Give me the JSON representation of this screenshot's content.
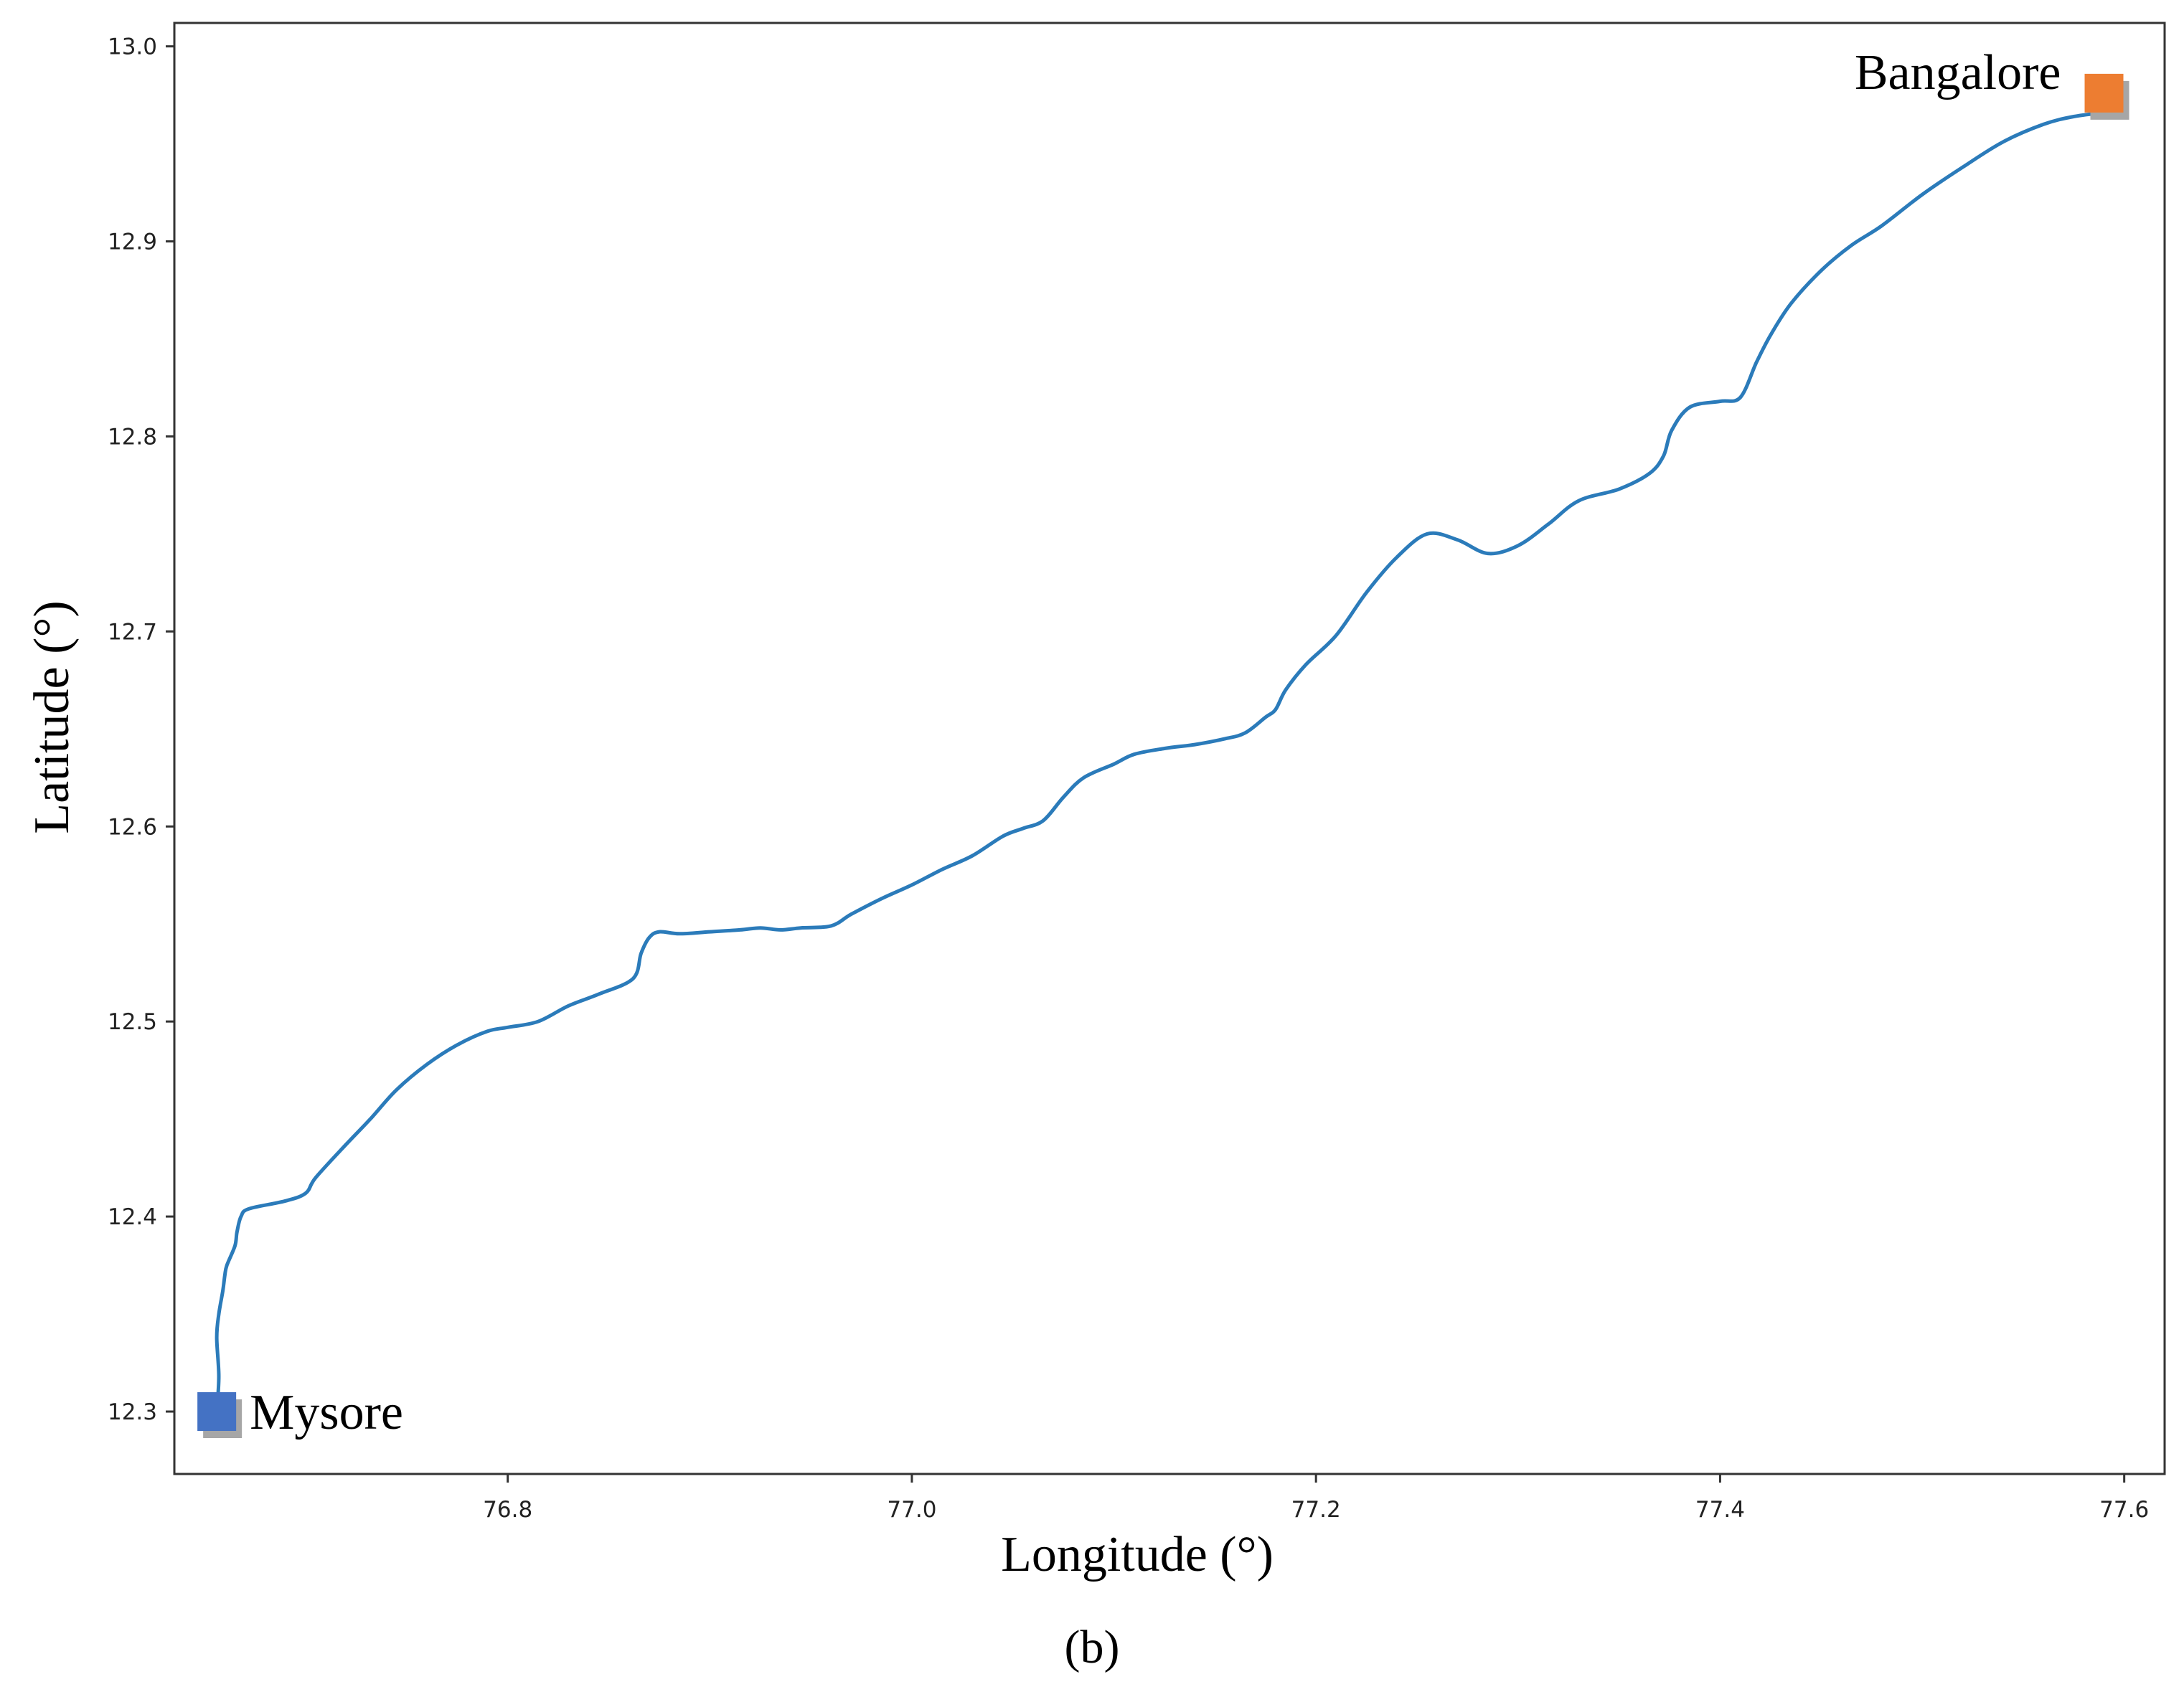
{
  "chart_data": {
    "type": "line",
    "xlabel": "Longitude (°)",
    "ylabel": "Latitude (°)",
    "xlim": [
      76.635,
      77.62
    ],
    "ylim": [
      12.268,
      13.012
    ],
    "xticks": [
      76.8,
      77.0,
      77.2,
      77.4,
      77.6
    ],
    "xtick_labels": [
      "76.8",
      "77.0",
      "77.2",
      "77.4",
      "77.6"
    ],
    "yticks": [
      12.3,
      12.4,
      12.5,
      12.6,
      12.7,
      12.8,
      12.9,
      13.0
    ],
    "ytick_labels": [
      "12.3",
      "12.4",
      "12.5",
      "12.6",
      "12.7",
      "12.8",
      "12.9",
      "13.0"
    ],
    "grid": false,
    "line_color": "#2b7bba",
    "series": [
      {
        "x": [
          76.656,
          76.657,
          76.656,
          76.657,
          76.659,
          76.66,
          76.661,
          76.665,
          76.666,
          76.668,
          76.672,
          76.69,
          76.7,
          76.705,
          76.72,
          76.732,
          76.745,
          76.76,
          76.775,
          76.79,
          76.8,
          76.815,
          76.83,
          76.845,
          76.862,
          76.866,
          76.87,
          76.875,
          76.885,
          76.9,
          76.915,
          76.925,
          76.935,
          76.945,
          76.96,
          76.97,
          76.985,
          77.0,
          77.015,
          77.03,
          77.045,
          77.055,
          77.065,
          77.075,
          77.085,
          77.1,
          77.11,
          77.125,
          77.14,
          77.155,
          77.165,
          77.175,
          77.18,
          77.185,
          77.195,
          77.21,
          77.225,
          77.24,
          77.255,
          77.27,
          77.285,
          77.3,
          77.315,
          77.33,
          77.35,
          77.365,
          77.372,
          77.376,
          77.385,
          77.4,
          77.41,
          77.418,
          77.425,
          77.435,
          77.45,
          77.465,
          77.48,
          77.5,
          77.52,
          77.54,
          77.56,
          77.575,
          77.59
        ],
        "y": [
          12.3,
          12.318,
          12.338,
          12.35,
          12.362,
          12.37,
          12.375,
          12.385,
          12.392,
          12.4,
          12.404,
          12.408,
          12.412,
          12.42,
          12.437,
          12.45,
          12.465,
          12.478,
          12.488,
          12.495,
          12.497,
          12.5,
          12.508,
          12.514,
          12.522,
          12.535,
          12.543,
          12.546,
          12.545,
          12.546,
          12.547,
          12.548,
          12.547,
          12.548,
          12.549,
          12.555,
          12.563,
          12.57,
          12.578,
          12.585,
          12.595,
          12.599,
          12.603,
          12.615,
          12.625,
          12.632,
          12.637,
          12.64,
          12.642,
          12.645,
          12.648,
          12.656,
          12.66,
          12.67,
          12.683,
          12.698,
          12.72,
          12.738,
          12.75,
          12.747,
          12.74,
          12.744,
          12.755,
          12.767,
          12.773,
          12.781,
          12.79,
          12.803,
          12.815,
          12.818,
          12.82,
          12.838,
          12.852,
          12.868,
          12.885,
          12.898,
          12.908,
          12.924,
          12.938,
          12.951,
          12.96,
          12.964,
          12.966
        ]
      }
    ],
    "markers": [
      {
        "label": "Mysore",
        "x": 76.656,
        "y": 12.3,
        "color": "#4472c4",
        "shadow_color": "#a6a6a6"
      },
      {
        "label": "Bangalore",
        "x": 77.59,
        "y": 12.976,
        "color": "#ed7d31",
        "shadow_color": "#a6a6a6"
      }
    ],
    "caption": "(b)"
  }
}
